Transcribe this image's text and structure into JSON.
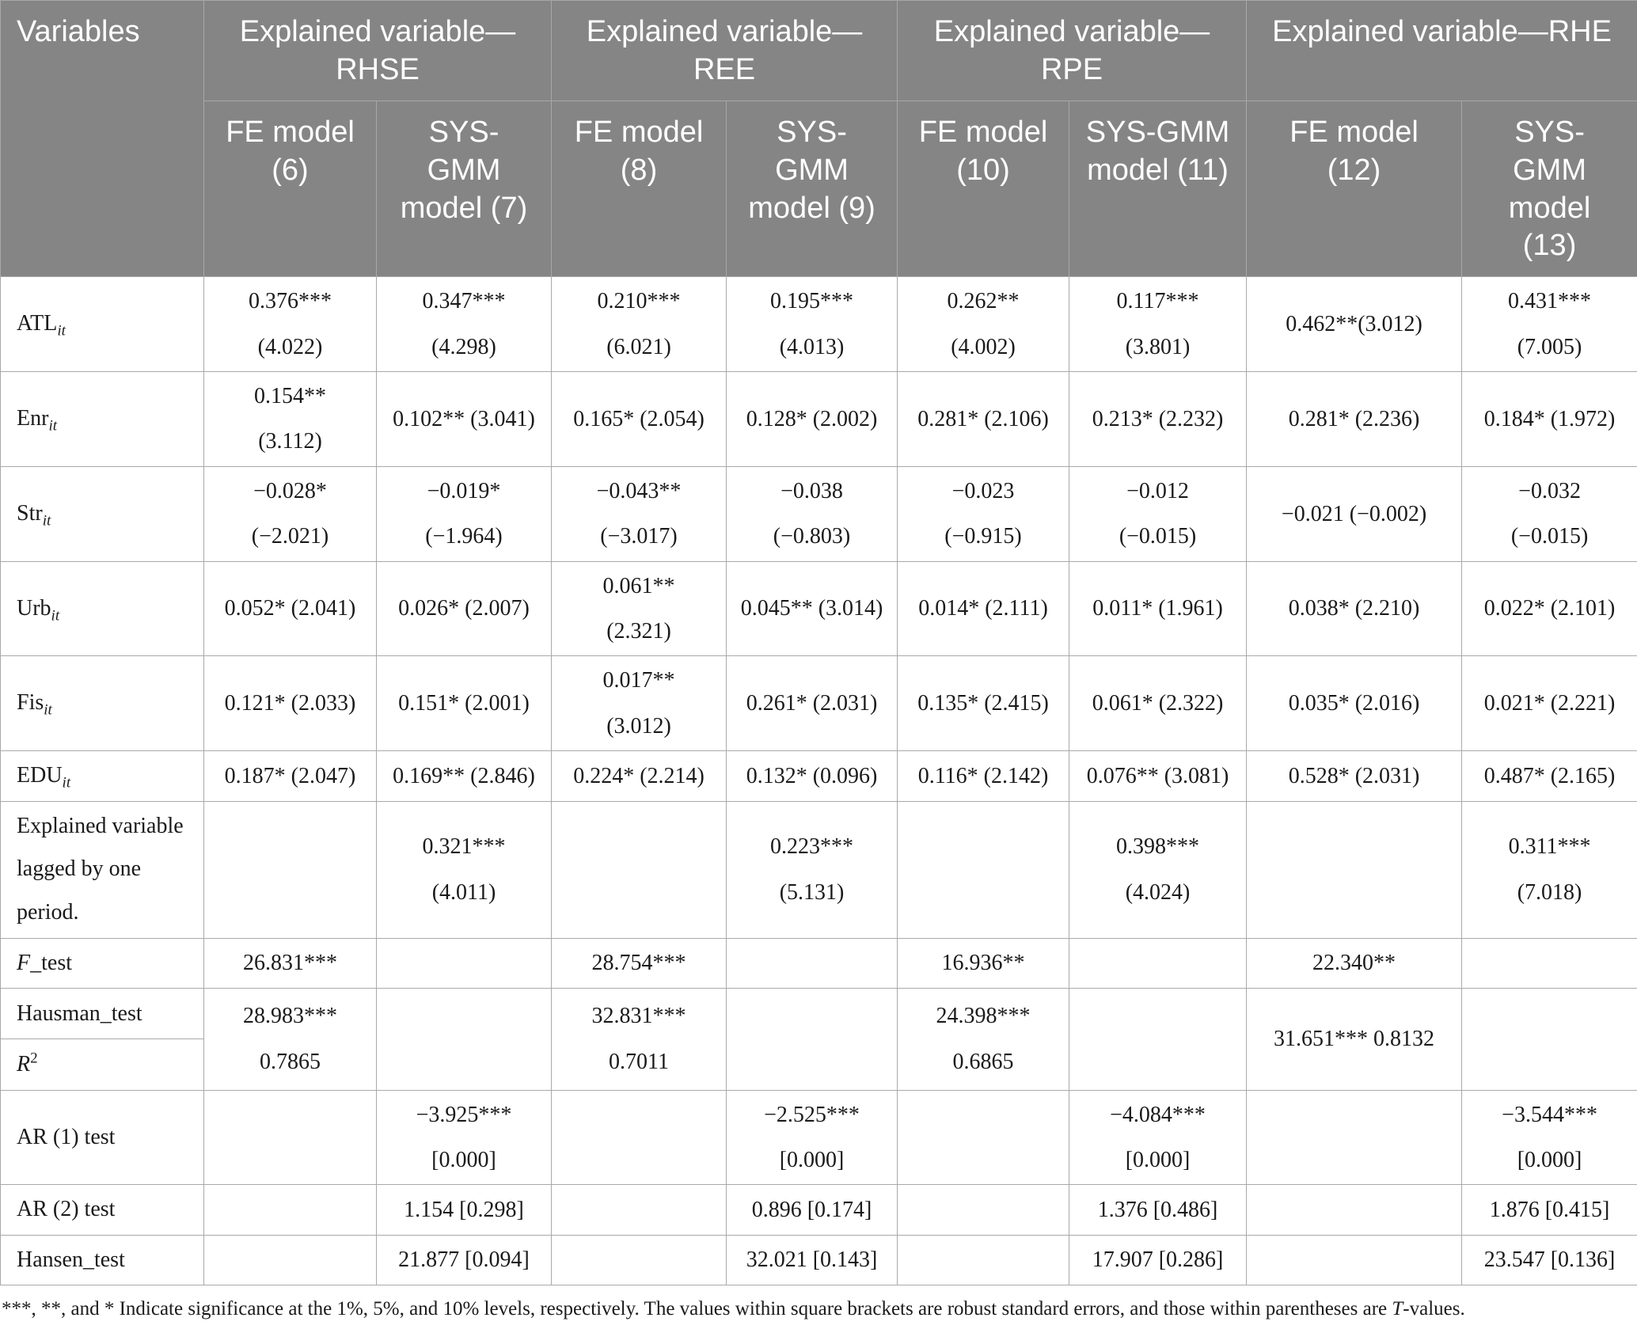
{
  "theme": {
    "header_bg": "#858585",
    "header_border": "#a8a8a8",
    "header_text": "#ffffff",
    "body_border": "#a9a9a9",
    "body_text": "#1a1a1a",
    "page_bg": "#ffffff"
  },
  "table": {
    "header": {
      "variables_label": "Variables",
      "groups": [
        {
          "label": "Explained variable—RHSE",
          "models": [
            "FE model (6)",
            "SYS-GMM model (7)"
          ]
        },
        {
          "label": "Explained variable—REE",
          "models": [
            "FE model (8)",
            "SYS-GMM model (9)"
          ]
        },
        {
          "label": "Explained variable—RPE",
          "models": [
            "FE model (10)",
            "SYS-GMM model (11)"
          ]
        },
        {
          "label": "Explained variable—RHE",
          "models": [
            "FE model (12)",
            "SYS-GMM model (13)"
          ]
        }
      ]
    },
    "rows": [
      {
        "label": {
          "text": "ATL",
          "sub": "it"
        },
        "cells": [
          "0.376***\n(4.022)",
          "0.347***\n(4.298)",
          "0.210***\n(6.021)",
          "0.195***\n(4.013)",
          "0.262**\n(4.002)",
          "0.117***\n(3.801)",
          "0.462**(3.012)",
          "0.431***\n(7.005)"
        ]
      },
      {
        "label": {
          "text": "Enr",
          "sub": "it"
        },
        "cells": [
          "0.154**\n(3.112)",
          "0.102** (3.041)",
          "0.165* (2.054)",
          "0.128* (2.002)",
          "0.281* (2.106)",
          "0.213* (2.232)",
          "0.281* (2.236)",
          "0.184* (1.972)"
        ]
      },
      {
        "label": {
          "text": "Str",
          "sub": "it"
        },
        "cells": [
          "−0.028*\n(−2.021)",
          "−0.019*\n(−1.964)",
          "−0.043**\n(−3.017)",
          "−0.038\n(−0.803)",
          "−0.023\n(−0.915)",
          "−0.012\n(−0.015)",
          "−0.021 (−0.002)",
          "−0.032\n(−0.015)"
        ]
      },
      {
        "label": {
          "text": "Urb",
          "sub": "it"
        },
        "cells": [
          "0.052* (2.041)",
          "0.026* (2.007)",
          "0.061**\n(2.321)",
          "0.045** (3.014)",
          "0.014* (2.111)",
          "0.011* (1.961)",
          "0.038* (2.210)",
          "0.022* (2.101)"
        ]
      },
      {
        "label": {
          "text": "Fis",
          "sub": "it"
        },
        "cells": [
          "0.121* (2.033)",
          "0.151* (2.001)",
          "0.017**\n(3.012)",
          "0.261* (2.031)",
          "0.135* (2.415)",
          "0.061* (2.322)",
          "0.035* (2.016)",
          "0.021* (2.221)"
        ]
      },
      {
        "label": {
          "text": "EDU",
          "sub": "it"
        },
        "cells": [
          "0.187* (2.047)",
          "0.169** (2.846)",
          "0.224* (2.214)",
          "0.132* (0.096)",
          "0.116* (2.142)",
          "0.076** (3.081)",
          "0.528* (2.031)",
          "0.487* (2.165)"
        ]
      },
      {
        "label": {
          "text": "Explained variable lagged by one period."
        },
        "cells": [
          "",
          "0.321***\n(4.011)",
          "",
          "0.223***\n(5.131)",
          "",
          "0.398***\n(4.024)",
          "",
          "0.311***\n(7.018)"
        ]
      },
      {
        "label": {
          "italic": "F",
          "text": "_test"
        },
        "cells": [
          "26.831***",
          "",
          "28.754***",
          "",
          "16.936**",
          "",
          "22.340**",
          ""
        ]
      },
      {
        "labels": [
          {
            "text": "Hausman_test"
          },
          {
            "italic": "R",
            "sup": "2"
          }
        ],
        "cells": [
          "28.983***\n0.7865",
          "",
          "32.831***\n0.7011",
          "",
          "24.398***\n0.6865",
          "",
          "31.651*** 0.8132",
          ""
        ]
      },
      {
        "label": {
          "text": "AR (1) test"
        },
        "cells": [
          "",
          "−3.925***\n[0.000]",
          "",
          "−2.525***\n[0.000]",
          "",
          "−4.084***\n[0.000]",
          "",
          "−3.544***\n[0.000]"
        ]
      },
      {
        "label": {
          "text": "AR (2) test"
        },
        "cells": [
          "",
          "1.154 [0.298]",
          "",
          "0.896 [0.174]",
          "",
          "1.376 [0.486]",
          "",
          "1.876 [0.415]"
        ]
      },
      {
        "label": {
          "text": "Hansen_test"
        },
        "cells": [
          "",
          "21.877 [0.094]",
          "",
          "32.021 [0.143]",
          "",
          "17.907 [0.286]",
          "",
          "23.547 [0.136]"
        ]
      }
    ]
  },
  "footnote": {
    "text_before": "***, **, and * Indicate significance at the 1%, 5%, and 10% levels, respectively. The values within square brackets are robust standard errors, and those within parentheses are ",
    "italic": "T",
    "text_after": "-values."
  }
}
